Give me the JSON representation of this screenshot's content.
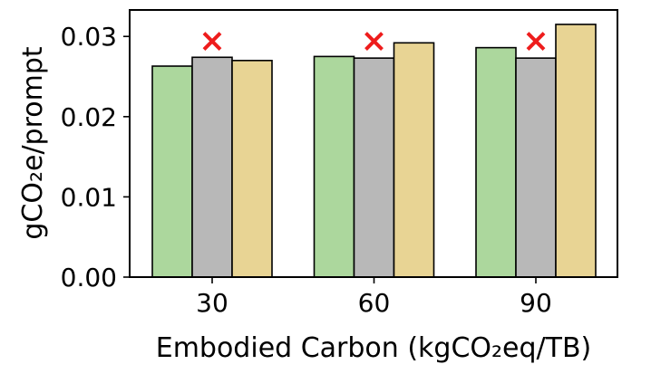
{
  "chart_data": {
    "type": "bar",
    "categories": [
      "30",
      "60",
      "90"
    ],
    "series": [
      {
        "values": [
          0.0263,
          0.0275,
          0.0286
        ],
        "color": "#acd79d"
      },
      {
        "values": [
          0.0274,
          0.0273,
          0.0273
        ],
        "color": "#b8b8b8"
      },
      {
        "values": [
          0.027,
          0.0292,
          0.0315
        ],
        "color": "#e8d494"
      }
    ],
    "markers": [
      {
        "category": "30",
        "series_index": 1,
        "symbol": "×",
        "color": "#ee1c1c",
        "value": 0.0294
      },
      {
        "category": "60",
        "series_index": 1,
        "symbol": "×",
        "color": "#ee1c1c",
        "value": 0.0294
      },
      {
        "category": "90",
        "series_index": 1,
        "symbol": "×",
        "color": "#ee1c1c",
        "value": 0.0294
      }
    ],
    "xlabel": "Embodied Carbon (kgCO₂eq/TB)",
    "ylabel": "gCO₂e/prompt",
    "ylim": [
      0,
      0.0333
    ],
    "yticks": [
      0.0,
      0.01,
      0.02,
      0.03
    ],
    "ytick_labels": [
      "0.00",
      "0.01",
      "0.02",
      "0.03"
    ],
    "grid": false,
    "legend": "none"
  }
}
